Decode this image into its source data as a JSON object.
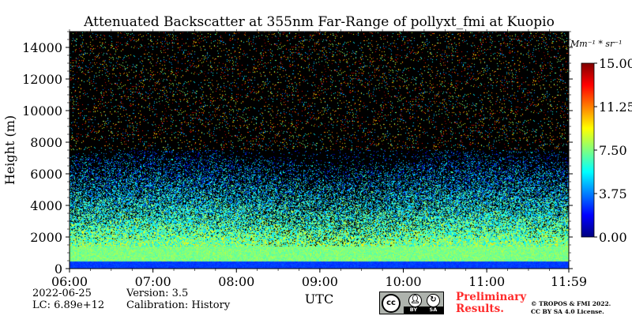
{
  "chart_data": {
    "type": "heatmap",
    "title": "Attenuated Backscatter at 355nm Far-Range of pollyxt_fmi at Kuopio",
    "xlabel": "UTC",
    "ylabel": "Height (m)",
    "x_ticks": [
      "06:00",
      "07:00",
      "08:00",
      "09:00",
      "10:00",
      "11:00",
      "11:59"
    ],
    "x_range": [
      "06:00",
      "11:59"
    ],
    "y_ticks": [
      0,
      2000,
      4000,
      6000,
      8000,
      10000,
      12000,
      14000
    ],
    "ylim": [
      0,
      15000
    ],
    "colorbar": {
      "unit_label": "Mm⁻¹ * sr⁻¹",
      "ticks": [
        "0.00",
        "3.75",
        "7.50",
        "11.25",
        "15.00"
      ],
      "range": [
        0,
        15
      ],
      "colormap": "jet",
      "colors": [
        "#00007f",
        "#0000ff",
        "#007fff",
        "#00ffff",
        "#7fff7f",
        "#ffff00",
        "#ff7f00",
        "#ff0000",
        "#7f0000"
      ]
    },
    "background": "#000000",
    "grid": false,
    "profile_shape": {
      "description_values": {
        "near_surface_layer_top_m": 450,
        "dense_aerosol_top_m": 1400,
        "aerosol_fade_top_m": 7500,
        "noise_ceiling_m": 15000
      }
    }
  },
  "footer": {
    "date": "2022-06-25",
    "lc": "LC: 6.89e+12",
    "version": "Version: 3.5",
    "calibration": "Calibration: History",
    "preliminary": "Preliminary",
    "results": "Results.",
    "copyright_line1": "© TROPOS & FMI 2022.",
    "copyright_line2": "CC BY SA 4.0 License.",
    "license_badge": {
      "cc": "cc",
      "by": "BY",
      "sa": "SA",
      "by_icon": "person-icon",
      "sa_icon": "share-alike-icon"
    }
  }
}
